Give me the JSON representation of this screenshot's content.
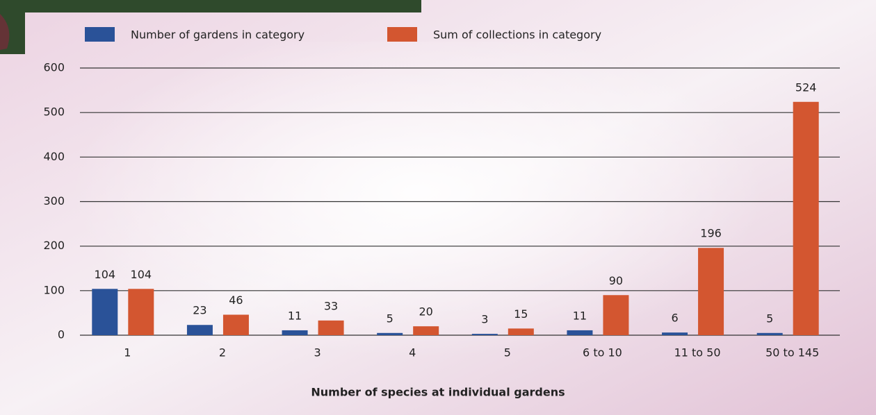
{
  "chart_data": {
    "type": "bar",
    "x_label": "Number of species at individual gardens",
    "categories": [
      "1",
      "2",
      "3",
      "4",
      "5",
      "6 to 10",
      "11 to 50",
      "50 to 145"
    ],
    "series": [
      {
        "name": "Number of gardens in category",
        "color": "#2a5298",
        "values": [
          104,
          23,
          11,
          5,
          3,
          11,
          6,
          5
        ]
      },
      {
        "name": "Sum of collections in category",
        "color": "#d35630",
        "values": [
          104,
          46,
          33,
          20,
          15,
          90,
          196,
          524
        ]
      }
    ],
    "ylim": [
      0,
      600
    ],
    "yticks": [
      0,
      100,
      200,
      300,
      400,
      500,
      600
    ],
    "grid": true,
    "legend": "top"
  }
}
